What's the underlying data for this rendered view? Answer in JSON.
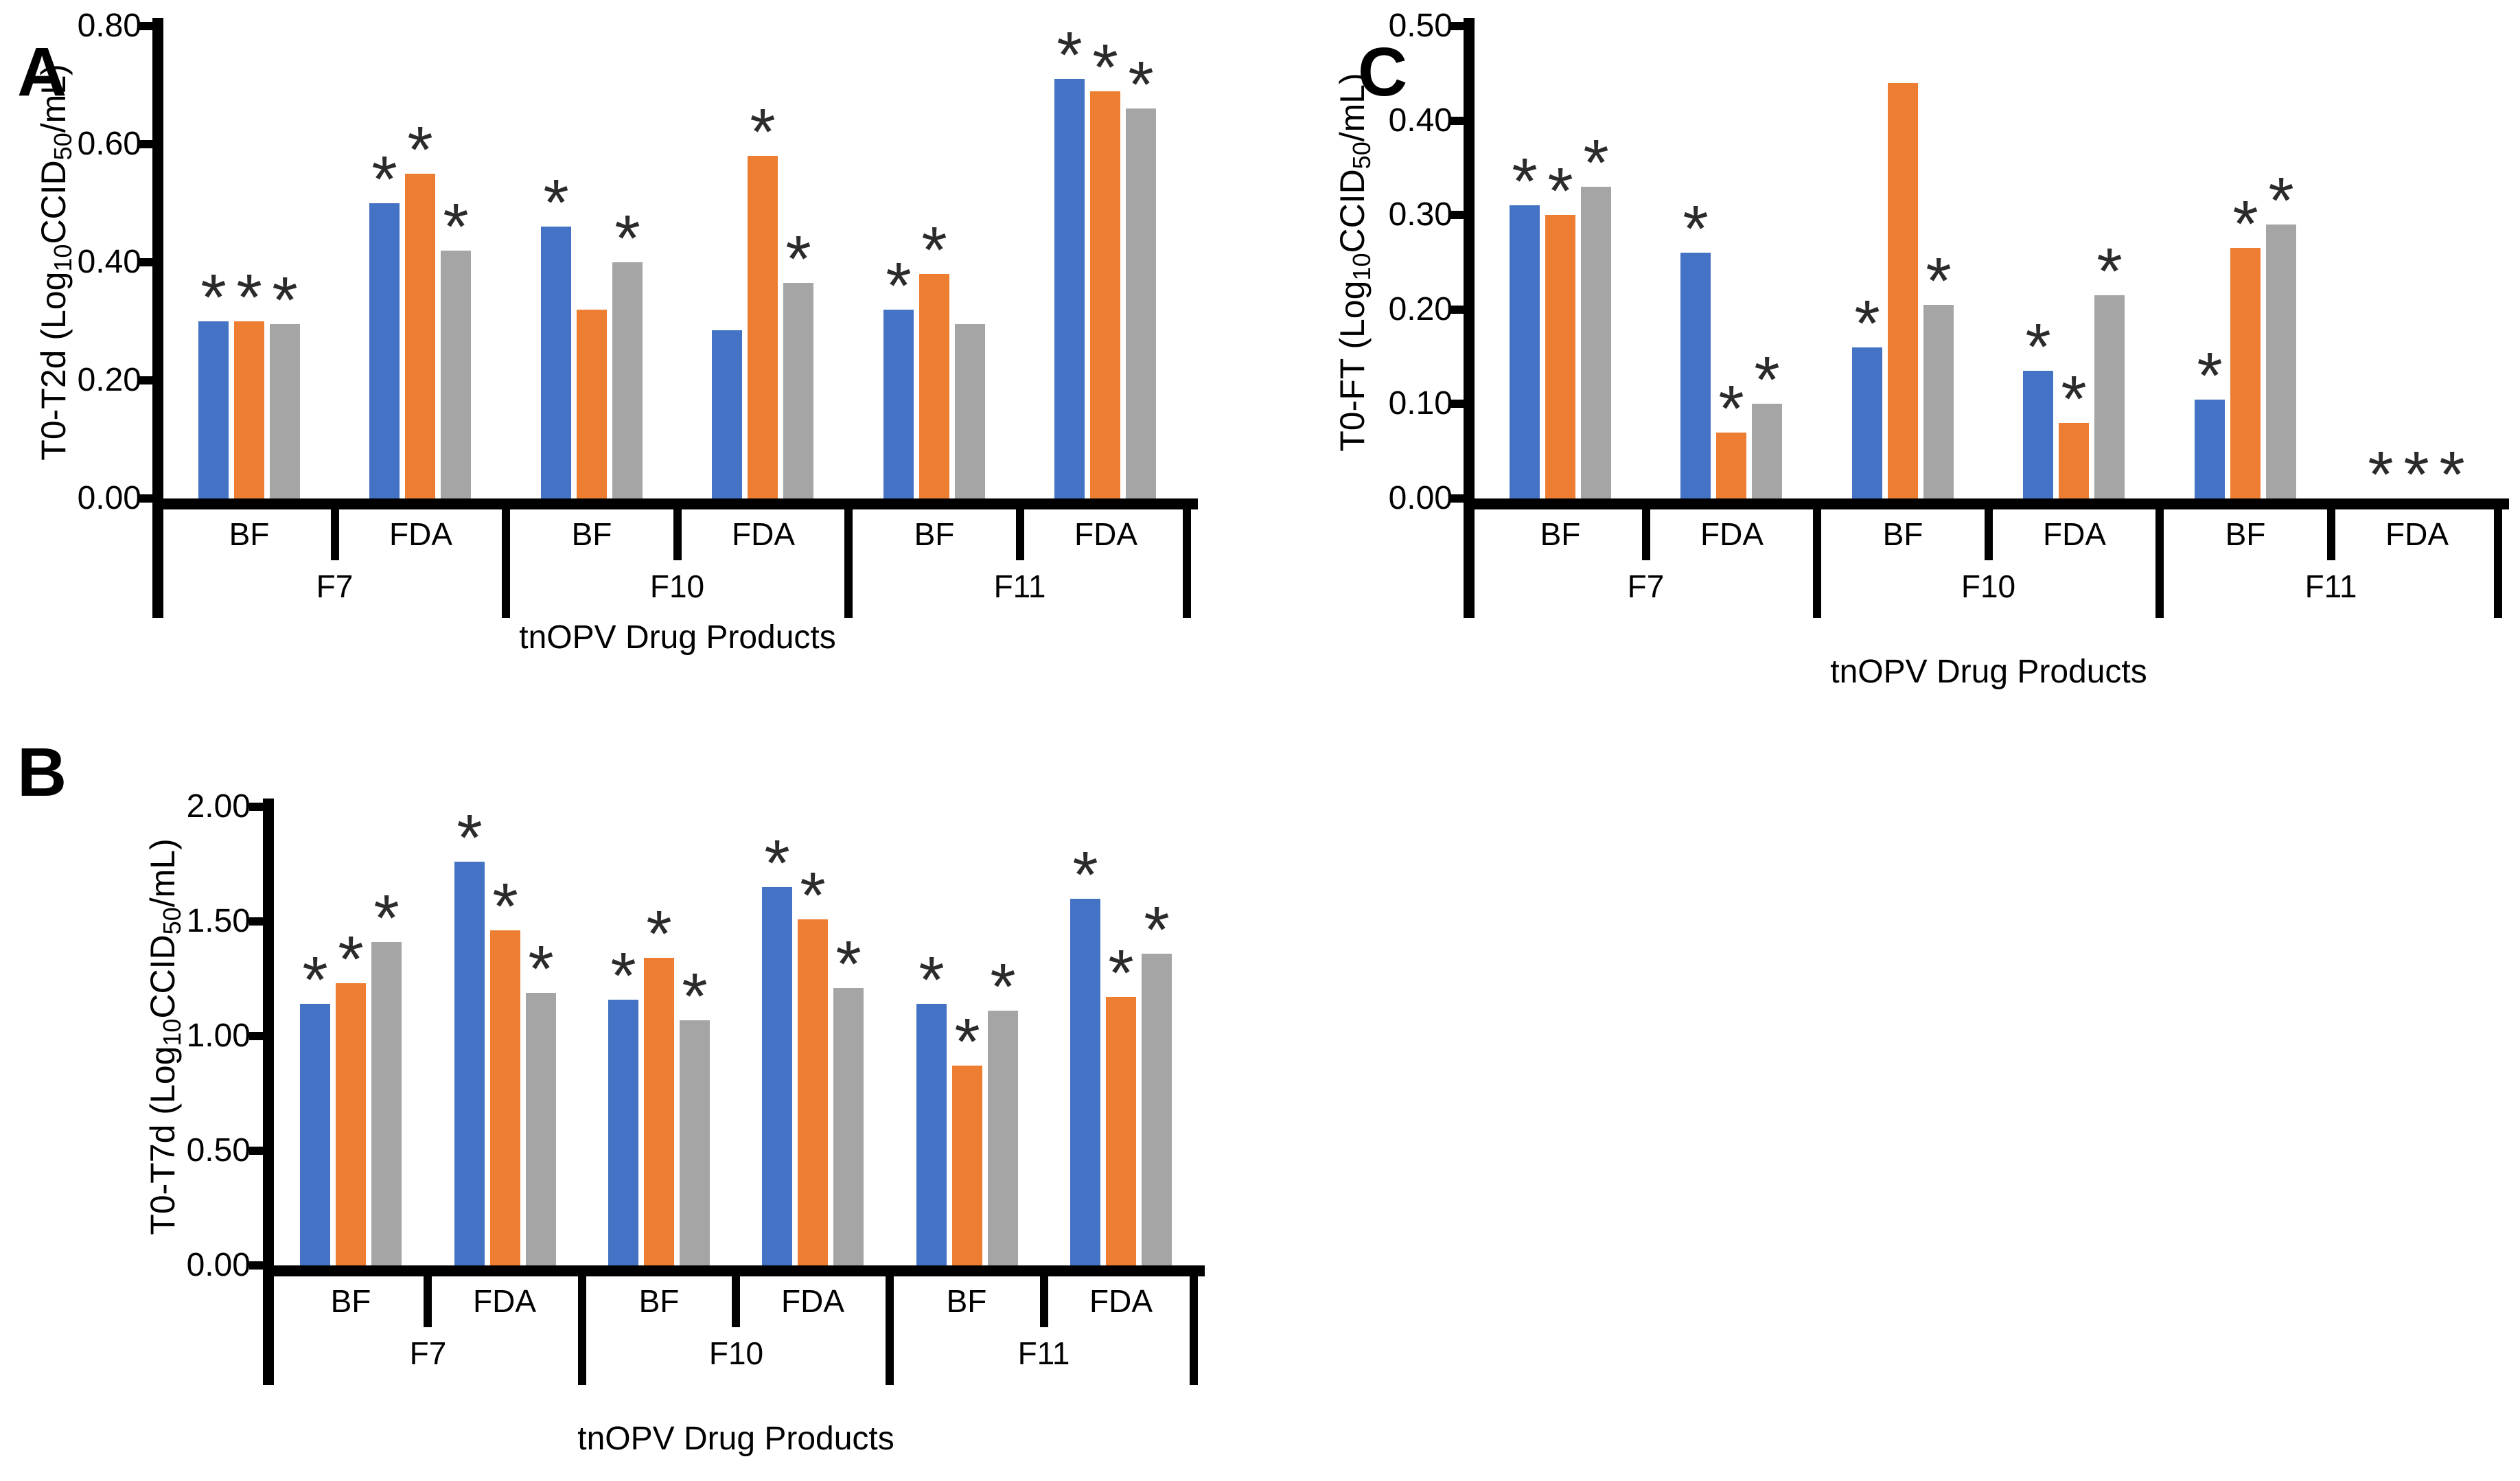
{
  "chart_data": [
    {
      "id": "A",
      "type": "bar",
      "panel_label": "A",
      "ylabel_segments": [
        {
          "text": "T0-T2d (Log"
        },
        {
          "text": "10",
          "sub": true
        },
        {
          "text": "CCID",
          "sub": false
        },
        {
          "text": "50",
          "sub": true
        },
        {
          "text": "/mL)",
          "sub": false
        }
      ],
      "ymax": 0.8,
      "ylim": [
        0,
        0.8
      ],
      "grid": false,
      "yticks": [
        {
          "value": 0.8,
          "label": "0.80"
        },
        {
          "value": 0.6,
          "label": "0.60"
        },
        {
          "value": 0.4,
          "label": "0.40"
        },
        {
          "value": 0.2,
          "label": "0.20"
        },
        {
          "value": 0.0,
          "label": "0.00"
        }
      ],
      "xlabel": "tnOPV Drug Products",
      "series": [
        "blue",
        "orange",
        "gray"
      ],
      "lots": [
        {
          "label": "F7",
          "sections": [
            {
              "label": "BF",
              "bars": [
                {
                  "value": 0.3,
                  "sig": true
                },
                {
                  "value": 0.3,
                  "sig": true
                },
                {
                  "value": 0.295,
                  "sig": true
                }
              ]
            },
            {
              "label": "FDA",
              "bars": [
                {
                  "value": 0.5,
                  "sig": true
                },
                {
                  "value": 0.55,
                  "sig": true
                },
                {
                  "value": 0.42,
                  "sig": true
                }
              ]
            }
          ]
        },
        {
          "label": "F10",
          "sections": [
            {
              "label": "BF",
              "bars": [
                {
                  "value": 0.46,
                  "sig": true
                },
                {
                  "value": 0.32,
                  "sig": false
                },
                {
                  "value": 0.4,
                  "sig": true
                }
              ]
            },
            {
              "label": "FDA",
              "bars": [
                {
                  "value": 0.285,
                  "sig": false
                },
                {
                  "value": 0.58,
                  "sig": true
                },
                {
                  "value": 0.365,
                  "sig": true
                }
              ]
            }
          ]
        },
        {
          "label": "F11",
          "sections": [
            {
              "label": "BF",
              "bars": [
                {
                  "value": 0.32,
                  "sig": true
                },
                {
                  "value": 0.38,
                  "sig": true
                },
                {
                  "value": 0.295,
                  "sig": false
                }
              ]
            },
            {
              "label": "FDA",
              "bars": [
                {
                  "value": 0.71,
                  "sig": true
                },
                {
                  "value": 0.69,
                  "sig": true
                },
                {
                  "value": 0.66,
                  "sig": true
                }
              ]
            }
          ]
        }
      ]
    },
    {
      "id": "B",
      "type": "bar",
      "panel_label": "B",
      "ylabel_segments": [
        {
          "text": "T0-T7d (Log"
        },
        {
          "text": "10",
          "sub": true
        },
        {
          "text": "CCID",
          "sub": false
        },
        {
          "text": "50",
          "sub": true
        },
        {
          "text": "/mL)",
          "sub": false
        }
      ],
      "ymax": 2.0,
      "ylim": [
        0,
        2.0
      ],
      "grid": false,
      "yticks": [
        {
          "value": 2.0,
          "label": "2.00"
        },
        {
          "value": 1.5,
          "label": "1.50"
        },
        {
          "value": 1.0,
          "label": "1.00"
        },
        {
          "value": 0.5,
          "label": "0.50"
        },
        {
          "value": 0.0,
          "label": "0.00"
        }
      ],
      "xlabel": "tnOPV Drug Products",
      "series": [
        "blue",
        "orange",
        "gray"
      ],
      "lots": [
        {
          "label": "F7",
          "sections": [
            {
              "label": "BF",
              "bars": [
                {
                  "value": 1.14,
                  "sig": true
                },
                {
                  "value": 1.23,
                  "sig": true
                },
                {
                  "value": 1.41,
                  "sig": true
                }
              ]
            },
            {
              "label": "FDA",
              "bars": [
                {
                  "value": 1.76,
                  "sig": true
                },
                {
                  "value": 1.46,
                  "sig": true
                },
                {
                  "value": 1.19,
                  "sig": true
                }
              ]
            }
          ]
        },
        {
          "label": "F10",
          "sections": [
            {
              "label": "BF",
              "bars": [
                {
                  "value": 1.16,
                  "sig": true
                },
                {
                  "value": 1.34,
                  "sig": true
                },
                {
                  "value": 1.07,
                  "sig": true
                }
              ]
            },
            {
              "label": "FDA",
              "bars": [
                {
                  "value": 1.65,
                  "sig": true
                },
                {
                  "value": 1.51,
                  "sig": true
                },
                {
                  "value": 1.21,
                  "sig": true
                }
              ]
            }
          ]
        },
        {
          "label": "F11",
          "sections": [
            {
              "label": "BF",
              "bars": [
                {
                  "value": 1.14,
                  "sig": true
                },
                {
                  "value": 0.87,
                  "sig": true
                },
                {
                  "value": 1.11,
                  "sig": true
                }
              ]
            },
            {
              "label": "FDA",
              "bars": [
                {
                  "value": 1.6,
                  "sig": true
                },
                {
                  "value": 1.17,
                  "sig": true
                },
                {
                  "value": 1.36,
                  "sig": true
                }
              ]
            }
          ]
        }
      ]
    },
    {
      "id": "C",
      "type": "bar",
      "panel_label": "C",
      "ylabel_segments": [
        {
          "text": "T0-FT (Log"
        },
        {
          "text": "10",
          "sub": true
        },
        {
          "text": "CCID",
          "sub": false
        },
        {
          "text": "50",
          "sub": true
        },
        {
          "text": "/mL)",
          "sub": false
        }
      ],
      "ymax": 0.5,
      "ylim": [
        0,
        0.5
      ],
      "grid": false,
      "yticks": [
        {
          "value": 0.5,
          "label": "0.50"
        },
        {
          "value": 0.4,
          "label": "0.40"
        },
        {
          "value": 0.3,
          "label": "0.30"
        },
        {
          "value": 0.2,
          "label": "0.20"
        },
        {
          "value": 0.1,
          "label": "0.10"
        },
        {
          "value": 0.0,
          "label": "0.00"
        }
      ],
      "xlabel": "tnOPV Drug Products",
      "series": [
        "blue",
        "orange",
        "gray"
      ],
      "lots": [
        {
          "label": "F7",
          "sections": [
            {
              "label": "BF",
              "bars": [
                {
                  "value": 0.31,
                  "sig": true
                },
                {
                  "value": 0.3,
                  "sig": true
                },
                {
                  "value": 0.33,
                  "sig": true
                }
              ]
            },
            {
              "label": "FDA",
              "bars": [
                {
                  "value": 0.26,
                  "sig": true
                },
                {
                  "value": 0.07,
                  "sig": true
                },
                {
                  "value": 0.1,
                  "sig": true
                }
              ]
            }
          ]
        },
        {
          "label": "F10",
          "sections": [
            {
              "label": "BF",
              "bars": [
                {
                  "value": 0.16,
                  "sig": true
                },
                {
                  "value": 0.44,
                  "sig": false
                },
                {
                  "value": 0.205,
                  "sig": true
                }
              ]
            },
            {
              "label": "FDA",
              "bars": [
                {
                  "value": 0.135,
                  "sig": true
                },
                {
                  "value": 0.08,
                  "sig": true
                },
                {
                  "value": 0.215,
                  "sig": true
                }
              ]
            }
          ]
        },
        {
          "label": "F11",
          "sections": [
            {
              "label": "BF",
              "bars": [
                {
                  "value": 0.105,
                  "sig": true
                },
                {
                  "value": 0.265,
                  "sig": true
                },
                {
                  "value": 0.29,
                  "sig": true
                }
              ]
            },
            {
              "label": "FDA",
              "bars": [
                {
                  "value": 0.0,
                  "sig": true
                },
                {
                  "value": 0.0,
                  "sig": true
                },
                {
                  "value": 0.0,
                  "sig": true
                }
              ]
            }
          ]
        }
      ]
    }
  ],
  "series_colors": {
    "blue": "#4472C4",
    "orange": "#ED7D31",
    "gray": "#A5A5A5"
  },
  "axis_color": "#000000",
  "sig_marker": {
    "char": "*",
    "color": "#2b2b2b"
  }
}
